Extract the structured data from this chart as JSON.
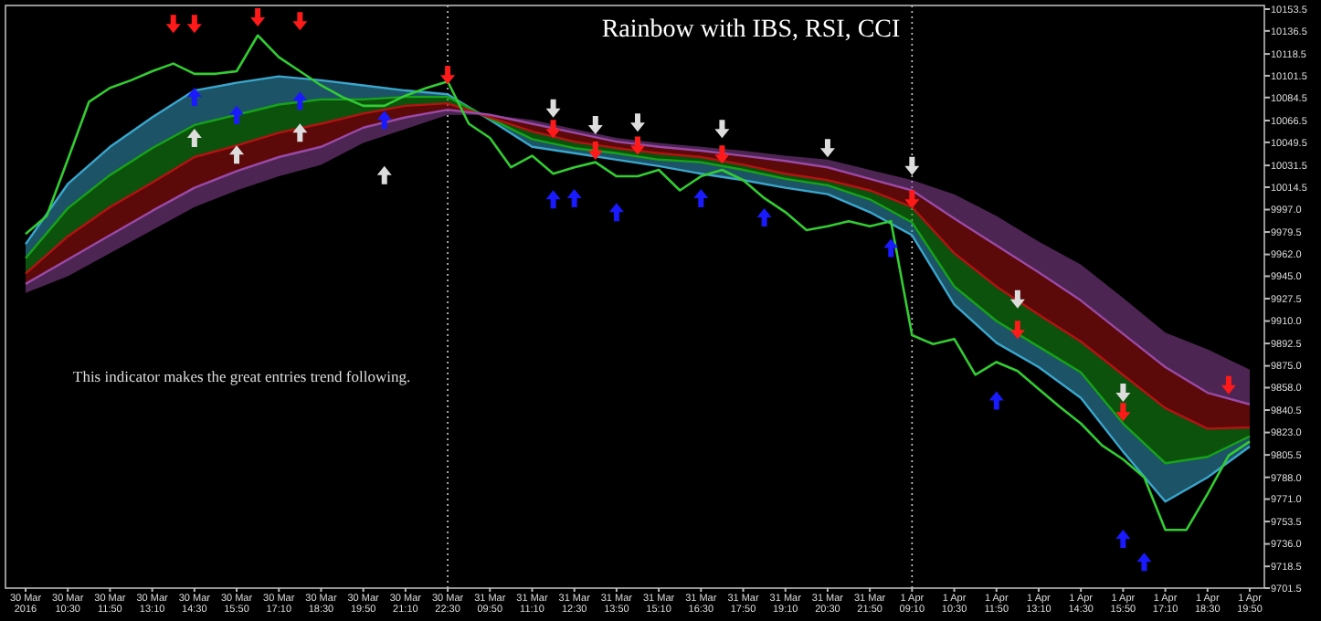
{
  "chart_data": {
    "type": "line",
    "title": "Rainbow with IBS, RSI, CCI",
    "annotations": [
      "This indicator makes the great entries trend following."
    ],
    "categories": [
      "30 Mar 2016",
      null,
      "30 Mar 10:30",
      null,
      "30 Mar 11:50",
      null,
      "30 Mar 13:10",
      null,
      "30 Mar 14:30",
      null,
      "30 Mar 15:50",
      null,
      "30 Mar 17:10",
      null,
      "30 Mar 18:30",
      null,
      "30 Mar 19:50",
      null,
      "30 Mar 21:10",
      null,
      "30 Mar 22:30",
      null,
      "31 Mar 09:50",
      null,
      "31 Mar 11:10",
      null,
      "31 Mar 12:30",
      null,
      "31 Mar 13:50",
      null,
      "31 Mar 15:10",
      null,
      "31 Mar 16:30",
      null,
      "31 Mar 17:50",
      null,
      "31 Mar 19:10",
      null,
      "31 Mar 20:30",
      null,
      "31 Mar 21:50",
      null,
      "1 Apr 09:10",
      null,
      "1 Apr 10:30",
      null,
      "1 Apr 11:50",
      null,
      "1 Apr 13:10",
      null,
      "1 Apr 14:30",
      null,
      "1 Apr 15:50",
      null,
      "1 Apr 17:10",
      null,
      "1 Apr 18:30",
      null,
      "1 Apr 19:50"
    ],
    "ylim": [
      9701.5,
      10153.5
    ],
    "yticks": [
      {
        "value": 10153.5,
        "label": "10153.5"
      },
      {
        "value": 10136.5,
        "label": "10136.5"
      },
      {
        "value": 10118.5,
        "label": "10118.5"
      },
      {
        "value": 10101.5,
        "label": "10101.5"
      },
      {
        "value": 10084.5,
        "label": "10084.5"
      },
      {
        "value": 10066.5,
        "label": "10066.5"
      },
      {
        "value": 10049.5,
        "label": "10049.5"
      },
      {
        "value": 10031.5,
        "label": "10031.5"
      },
      {
        "value": 10014.5,
        "label": "10014.5"
      },
      {
        "value": 9997.0,
        "label": "9997.0"
      },
      {
        "value": 9979.5,
        "label": "9979.5"
      },
      {
        "value": 9962.0,
        "label": "9962.0"
      },
      {
        "value": 9945.0,
        "label": "9945.0"
      },
      {
        "value": 9927.5,
        "label": "9927.5"
      },
      {
        "value": 9910.0,
        "label": "9910.0"
      },
      {
        "value": 9892.5,
        "label": "9892.5"
      },
      {
        "value": 9875.0,
        "label": "9875.0"
      },
      {
        "value": 9858.0,
        "label": "9858.0"
      },
      {
        "value": 9840.5,
        "label": "9840.5"
      },
      {
        "value": 9823.0,
        "label": "9823.0"
      },
      {
        "value": 9805.5,
        "label": "9805.5"
      },
      {
        "value": 9788.0,
        "label": "9788.0"
      },
      {
        "value": 9771.0,
        "label": "9771.0"
      },
      {
        "value": 9753.5,
        "label": "9753.5"
      },
      {
        "value": 9736.0,
        "label": "9736.0"
      },
      {
        "value": 9718.5,
        "label": "9718.5"
      },
      {
        "value": 9701.5,
        "label": "9701.5"
      }
    ],
    "grid": false,
    "ref_lines": [
      {
        "axis": "x",
        "value": "30 Mar 22:30",
        "color": "#cccccc",
        "line_style": "dotted"
      },
      {
        "axis": "x",
        "value": "1 Apr 09:10",
        "color": "#cccccc",
        "line_style": "dotted"
      }
    ],
    "series": [
      {
        "color": "#3aa6cc",
        "x": [
          "30 Mar 2016",
          "30 Mar 10:30",
          "30 Mar 11:50",
          "30 Mar 13:10",
          "30 Mar 14:30",
          "30 Mar 15:50",
          "30 Mar 17:10",
          "30 Mar 18:30",
          "30 Mar 19:50",
          "30 Mar 21:10",
          "30 Mar 22:30",
          "31 Mar 09:50",
          "31 Mar 11:10",
          "31 Mar 12:30",
          "31 Mar 13:50",
          "31 Mar 15:10",
          "31 Mar 16:30",
          "31 Mar 17:50",
          "31 Mar 19:10",
          "31 Mar 20:30",
          "31 Mar 21:50",
          "1 Apr 09:10",
          "1 Apr 10:30",
          "1 Apr 11:50",
          "1 Apr 13:10",
          "1 Apr 14:30",
          "1 Apr 15:50",
          "1 Apr 17:10",
          "1 Apr 18:30",
          "1 Apr 19:50"
        ],
        "values": [
          9970,
          10017,
          10046,
          10069,
          10090,
          10096,
          10101,
          10098,
          10094,
          10090,
          10087,
          10067,
          10046,
          10041,
          10036,
          10031,
          10025,
          10020,
          10014,
          10009,
          9995,
          9977,
          9923,
          9893,
          9874,
          9850,
          9808,
          9769,
          9788,
          9812
        ],
        "lower": [
          9970,
          10017,
          10046,
          10069,
          10090,
          10096,
          10101,
          10098,
          10094,
          10090,
          10087,
          10067,
          10046,
          10041,
          10036,
          10031,
          10025,
          10020,
          10014,
          10009,
          9995,
          9977,
          9923,
          9893,
          9874,
          9850,
          9808,
          9769,
          9788,
          9812
        ],
        "upper": [
          9959,
          9998,
          10024,
          10045,
          10063,
          10071,
          10079,
          10083,
          10083,
          10085,
          10085,
          10068,
          10052,
          10045,
          10041,
          10036,
          10034,
          10028,
          10021,
          10016,
          10005,
          9987,
          9937,
          9910,
          9890,
          9870,
          9830,
          9799,
          9804,
          9820
        ]
      },
      {
        "color": "#17a317",
        "x": [
          "30 Mar 2016",
          "30 Mar 10:30",
          "30 Mar 11:50",
          "30 Mar 13:10",
          "30 Mar 14:30",
          "30 Mar 15:50",
          "30 Mar 17:10",
          "30 Mar 18:30",
          "30 Mar 19:50",
          "30 Mar 21:10",
          "30 Mar 22:30",
          "31 Mar 09:50",
          "31 Mar 11:10",
          "31 Mar 12:30",
          "31 Mar 13:50",
          "31 Mar 15:10",
          "31 Mar 16:30",
          "31 Mar 17:50",
          "31 Mar 19:10",
          "31 Mar 20:30",
          "31 Mar 21:50",
          "1 Apr 09:10",
          "1 Apr 10:30",
          "1 Apr 11:50",
          "1 Apr 13:10",
          "1 Apr 14:30",
          "1 Apr 15:50",
          "1 Apr 17:10",
          "1 Apr 18:30",
          "1 Apr 19:50"
        ],
        "values": [
          9959,
          9998,
          10024,
          10045,
          10063,
          10071,
          10079,
          10083,
          10083,
          10085,
          10085,
          10068,
          10052,
          10045,
          10041,
          10036,
          10034,
          10028,
          10021,
          10016,
          10005,
          9987,
          9937,
          9910,
          9890,
          9870,
          9830,
          9799,
          9804,
          9820
        ],
        "lower": [
          9959,
          9998,
          10024,
          10045,
          10063,
          10071,
          10079,
          10083,
          10083,
          10085,
          10085,
          10068,
          10052,
          10045,
          10041,
          10036,
          10034,
          10028,
          10021,
          10016,
          10005,
          9987,
          9937,
          9910,
          9890,
          9870,
          9830,
          9799,
          9804,
          9820
        ],
        "upper": [
          9947,
          9976,
          9999,
          10018,
          10038,
          10047,
          10057,
          10064,
          10072,
          10078,
          10080,
          10069,
          10058,
          10050,
          10045,
          10041,
          10038,
          10032,
          10025,
          10020,
          10012,
          9999,
          9963,
          9937,
          9915,
          9894,
          9868,
          9842,
          9826,
          9827
        ]
      },
      {
        "color": "#b51212",
        "x": [
          "30 Mar 2016",
          "30 Mar 10:30",
          "30 Mar 11:50",
          "30 Mar 13:10",
          "30 Mar 14:30",
          "30 Mar 15:50",
          "30 Mar 17:10",
          "30 Mar 18:30",
          "30 Mar 19:50",
          "30 Mar 21:10",
          "30 Mar 22:30",
          "31 Mar 09:50",
          "31 Mar 11:10",
          "31 Mar 12:30",
          "31 Mar 13:50",
          "31 Mar 15:10",
          "31 Mar 16:30",
          "31 Mar 17:50",
          "31 Mar 19:10",
          "31 Mar 20:30",
          "31 Mar 21:50",
          "1 Apr 09:10",
          "1 Apr 10:30",
          "1 Apr 11:50",
          "1 Apr 13:10",
          "1 Apr 14:30",
          "1 Apr 15:50",
          "1 Apr 17:10",
          "1 Apr 18:30",
          "1 Apr 19:50"
        ],
        "values": [
          9947,
          9976,
          9999,
          10018,
          10038,
          10047,
          10057,
          10064,
          10072,
          10078,
          10080,
          10069,
          10058,
          10050,
          10045,
          10041,
          10038,
          10032,
          10025,
          10020,
          10012,
          9999,
          9963,
          9937,
          9915,
          9894,
          9868,
          9842,
          9826,
          9827
        ],
        "lower": [
          9947,
          9976,
          9999,
          10018,
          10038,
          10047,
          10057,
          10064,
          10072,
          10078,
          10080,
          10069,
          10058,
          10050,
          10045,
          10041,
          10038,
          10032,
          10025,
          10020,
          10012,
          9999,
          9963,
          9937,
          9915,
          9894,
          9868,
          9842,
          9826,
          9827
        ],
        "upper": [
          9939,
          9958,
          9977,
          9996,
          10014,
          10027,
          10038,
          10046,
          10061,
          10069,
          10075,
          10071,
          10064,
          10057,
          10050,
          10046,
          10043,
          10039,
          10035,
          10030,
          10021,
          10012,
          9990,
          9969,
          9948,
          9926,
          9900,
          9874,
          9854,
          9845
        ]
      },
      {
        "color": "#9a4aa6",
        "x": [
          "30 Mar 2016",
          "30 Mar 10:30",
          "30 Mar 11:50",
          "30 Mar 13:10",
          "30 Mar 14:30",
          "30 Mar 15:50",
          "30 Mar 17:10",
          "30 Mar 18:30",
          "30 Mar 19:50",
          "30 Mar 21:10",
          "30 Mar 22:30",
          "31 Mar 09:50",
          "31 Mar 11:10",
          "31 Mar 12:30",
          "31 Mar 13:50",
          "31 Mar 15:10",
          "31 Mar 16:30",
          "31 Mar 17:50",
          "31 Mar 19:10",
          "31 Mar 20:30",
          "31 Mar 21:50",
          "1 Apr 09:10",
          "1 Apr 10:30",
          "1 Apr 11:50",
          "1 Apr 13:10",
          "1 Apr 14:30",
          "1 Apr 15:50",
          "1 Apr 17:10",
          "1 Apr 18:30",
          "1 Apr 19:50"
        ],
        "values": [
          9939,
          9958,
          9977,
          9996,
          10014,
          10027,
          10038,
          10046,
          10061,
          10069,
          10075,
          10071,
          10064,
          10057,
          10050,
          10046,
          10043,
          10039,
          10035,
          10030,
          10021,
          10012,
          9990,
          9969,
          9948,
          9926,
          9900,
          9874,
          9854,
          9845
        ],
        "lower": [
          9939,
          9958,
          9977,
          9996,
          10014,
          10027,
          10038,
          10046,
          10061,
          10069,
          10075,
          10071,
          10064,
          10057,
          10050,
          10046,
          10043,
          10039,
          10035,
          10030,
          10021,
          10012,
          9990,
          9969,
          9948,
          9926,
          9900,
          9874,
          9854,
          9845
        ],
        "upper": [
          9932,
          9945,
          9963,
          9981,
          9999,
          10012,
          10023,
          10032,
          10049,
          10060,
          10071,
          10071,
          10067,
          10060,
          10053,
          10049,
          10046,
          10043,
          10039,
          10036,
          10028,
          10020,
          10009,
          9992,
          9972,
          9954,
          9928,
          9901,
          9888,
          9872
        ]
      },
      {
        "color": "#33cc33",
        "values": [
          9978,
          9992,
          10036,
          10081,
          10092,
          10098,
          10105,
          10111,
          10103,
          10103,
          10105,
          10133,
          10116,
          10105,
          10094,
          10085,
          10078,
          10078,
          10086,
          10092,
          10097,
          10064,
          10053,
          10030,
          10039,
          10025,
          10030,
          10034,
          10023,
          10023,
          10028,
          10012,
          10023,
          10028,
          10020,
          10006,
          9995,
          9981,
          9984,
          9988,
          9984,
          9988,
          9899,
          9892,
          9896,
          9868,
          9878,
          9871,
          9857,
          9843,
          9830,
          9813,
          9802,
          9788,
          9747,
          9747,
          9775,
          9805,
          9816
        ]
      },
      {
        "type": "scatter",
        "color": "#ff1a1a",
        "values": [
          null,
          null,
          null,
          null,
          null,
          null,
          null,
          10142,
          10142,
          null,
          null,
          10147,
          null,
          10144,
          null,
          null,
          null,
          null,
          null,
          null,
          10102,
          null,
          null,
          null,
          null,
          10060,
          null,
          10043,
          null,
          10047,
          null,
          null,
          null,
          10040,
          null,
          null,
          null,
          null,
          null,
          null,
          null,
          null,
          10005,
          null,
          null,
          null,
          null,
          9903,
          null,
          null,
          null,
          null,
          9839,
          null,
          null,
          null,
          null,
          9860,
          null
        ]
      },
      {
        "type": "scatter",
        "color": "#1a1aff",
        "marker": "triangle",
        "values": [
          null,
          null,
          null,
          null,
          null,
          null,
          null,
          null,
          10085,
          null,
          10071,
          null,
          null,
          10082,
          null,
          null,
          null,
          10067,
          null,
          null,
          null,
          null,
          null,
          null,
          null,
          10005,
          10006,
          null,
          9995,
          null,
          null,
          null,
          10006,
          null,
          null,
          9991,
          null,
          null,
          null,
          null,
          null,
          9967,
          null,
          null,
          null,
          null,
          9848,
          null,
          null,
          null,
          null,
          null,
          9740,
          9722,
          null,
          null,
          null,
          null,
          null
        ]
      },
      {
        "type": "scatter",
        "color": "#dddddd",
        "marker": "triangle",
        "values": [
          null,
          null,
          null,
          null,
          null,
          null,
          null,
          null,
          10053,
          null,
          10040,
          null,
          null,
          10057,
          null,
          null,
          null,
          10024,
          null,
          null,
          null,
          null,
          null,
          null,
          null,
          null,
          null,
          null,
          null,
          null,
          null,
          null,
          null,
          null,
          null,
          null,
          null,
          null,
          null,
          null,
          null,
          null,
          null,
          null,
          null,
          null,
          null,
          null,
          null,
          null,
          null,
          null,
          null,
          null,
          null,
          null,
          null,
          null,
          null
        ]
      },
      {
        "type": "scatter",
        "color": "#dddddd",
        "values": [
          null,
          null,
          null,
          null,
          null,
          null,
          null,
          null,
          null,
          null,
          null,
          null,
          null,
          null,
          null,
          null,
          null,
          null,
          null,
          null,
          null,
          null,
          null,
          null,
          null,
          10076,
          null,
          10063,
          null,
          10065,
          null,
          null,
          null,
          10060,
          null,
          null,
          null,
          null,
          10045,
          null,
          null,
          null,
          10031,
          null,
          null,
          null,
          null,
          9927,
          null,
          null,
          null,
          null,
          9854,
          null,
          null,
          null,
          null,
          null,
          null
        ]
      }
    ]
  }
}
